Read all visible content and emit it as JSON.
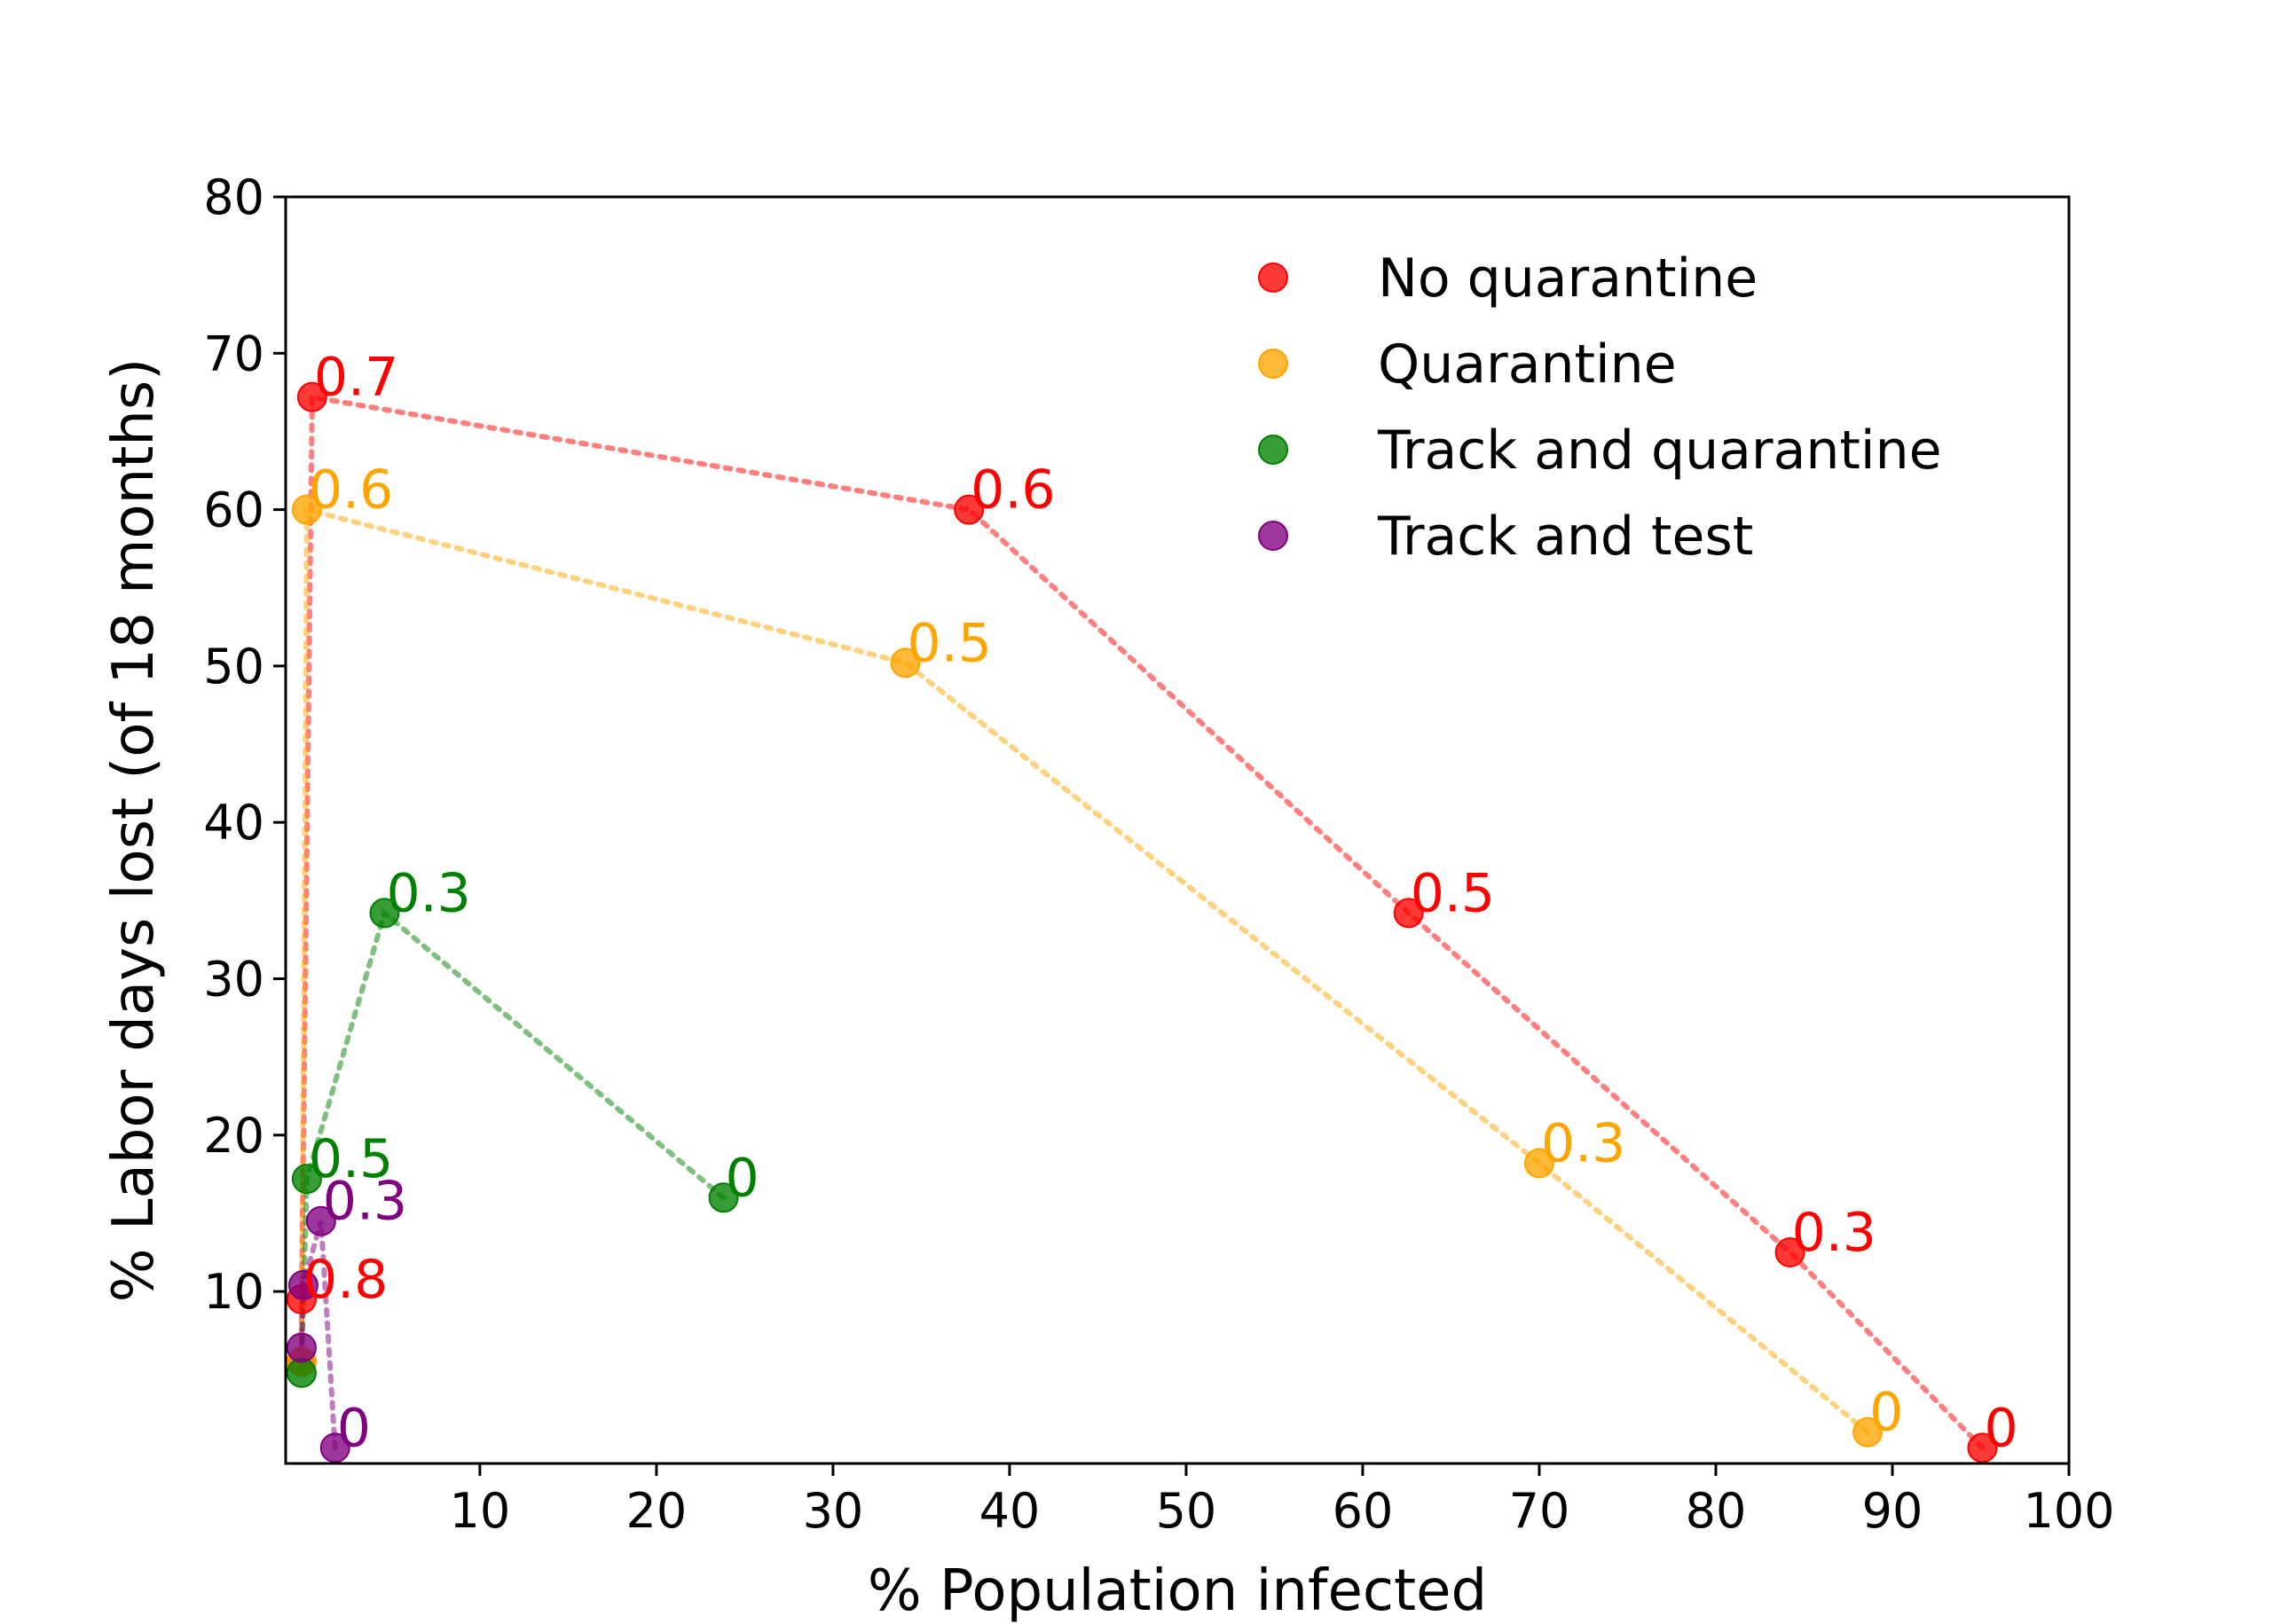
{
  "chart_data": {
    "type": "scatter",
    "title": "",
    "xlabel": "% Population infected",
    "ylabel": "% Labor days lost (of 18 months)",
    "xlim": [
      -1,
      100
    ],
    "ylim": [
      -1,
      80
    ],
    "xticks": [
      10,
      20,
      30,
      40,
      50,
      60,
      70,
      80,
      90,
      100
    ],
    "yticks": [
      10,
      20,
      30,
      40,
      50,
      60,
      70,
      80
    ],
    "grid": false,
    "legend_position": "top-right",
    "series": [
      {
        "name": "No quarantine",
        "color": "#ff0000",
        "points": [
          {
            "x": 95.1,
            "y": 0.0,
            "label": "0"
          },
          {
            "x": 84.2,
            "y": 12.5,
            "label": "0.3"
          },
          {
            "x": 62.6,
            "y": 34.2,
            "label": "0.5"
          },
          {
            "x": 37.7,
            "y": 60.0,
            "label": "0.6"
          },
          {
            "x": 0.5,
            "y": 67.2,
            "label": "0.7"
          },
          {
            "x": -0.1,
            "y": 9.5,
            "label": "0.8"
          },
          {
            "x": -0.1,
            "y": 5.5,
            "label": ""
          }
        ]
      },
      {
        "name": "Quarantine",
        "color": "#ffa500",
        "points": [
          {
            "x": 88.6,
            "y": 1.0,
            "label": "0"
          },
          {
            "x": 70.0,
            "y": 18.2,
            "label": "0.3"
          },
          {
            "x": 34.1,
            "y": 50.2,
            "label": "0.5"
          },
          {
            "x": 0.2,
            "y": 60.0,
            "label": "0.6"
          },
          {
            "x": -0.1,
            "y": 5.5,
            "label": ""
          }
        ]
      },
      {
        "name": "Track and quarantine",
        "color": "#008000",
        "points": [
          {
            "x": 23.8,
            "y": 16.0,
            "label": "0"
          },
          {
            "x": 4.6,
            "y": 34.2,
            "label": "0.3"
          },
          {
            "x": 0.2,
            "y": 17.2,
            "label": "0.5"
          },
          {
            "x": -0.1,
            "y": 4.8,
            "label": ""
          }
        ]
      },
      {
        "name": "Track and test",
        "color": "#800080",
        "points": [
          {
            "x": 1.8,
            "y": 0.0,
            "label": "0"
          },
          {
            "x": 1.0,
            "y": 14.5,
            "label": "0.3"
          },
          {
            "x": 0.0,
            "y": 10.4,
            "label": ""
          },
          {
            "x": -0.1,
            "y": 6.4,
            "label": ""
          }
        ]
      }
    ]
  }
}
